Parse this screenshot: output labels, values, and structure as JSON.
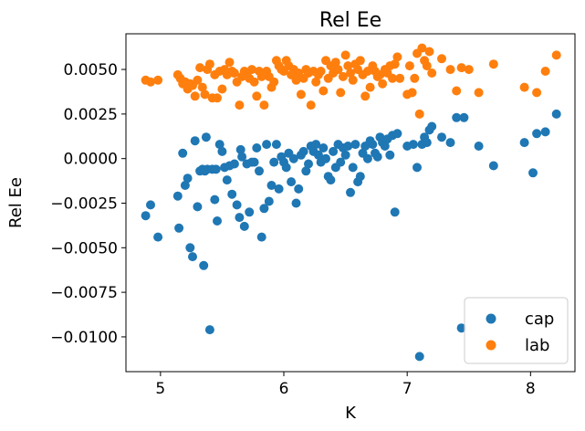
{
  "chart_data": {
    "type": "scatter",
    "title": "Rel Ee",
    "xlabel": "K",
    "ylabel": "Rel Ee",
    "xlim": [
      4.72,
      8.36
    ],
    "ylim": [
      -0.01195,
      0.007
    ],
    "xticks": [
      5,
      6,
      7,
      8
    ],
    "xtick_labels": [
      "5",
      "6",
      "7",
      "8"
    ],
    "yticks": [
      -0.01,
      -0.0075,
      -0.005,
      -0.0025,
      0.0,
      0.0025,
      0.005
    ],
    "ytick_labels": [
      "−0.0100",
      "−0.0075",
      "−0.0050",
      "−0.0025",
      "0.0000",
      "0.0025",
      "0.0050"
    ],
    "grid": false,
    "legend_position": "lower-right",
    "series": [
      {
        "name": "cap",
        "color": "#1f77b4",
        "points": [
          [
            4.88,
            -0.0032
          ],
          [
            4.92,
            -0.0026
          ],
          [
            4.98,
            -0.0044
          ],
          [
            5.14,
            -0.0021
          ],
          [
            5.15,
            -0.0039
          ],
          [
            5.18,
            0.0003
          ],
          [
            5.2,
            -0.0015
          ],
          [
            5.22,
            -0.0011
          ],
          [
            5.24,
            -0.005
          ],
          [
            5.26,
            -0.0055
          ],
          [
            5.28,
            0.001
          ],
          [
            5.3,
            -0.0027
          ],
          [
            5.32,
            -0.0007
          ],
          [
            5.34,
            -0.0006
          ],
          [
            5.35,
            -0.006
          ],
          [
            5.36,
            -0.0007
          ],
          [
            5.37,
            0.0012
          ],
          [
            5.38,
            -0.0006
          ],
          [
            5.4,
            -0.0096
          ],
          [
            5.42,
            -0.0006
          ],
          [
            5.44,
            -0.0023
          ],
          [
            5.45,
            -0.0006
          ],
          [
            5.46,
            -0.0035
          ],
          [
            5.48,
            0.0008
          ],
          [
            5.5,
            0.0004
          ],
          [
            5.52,
            -0.0005
          ],
          [
            5.54,
            -0.0012
          ],
          [
            5.56,
            -0.0004
          ],
          [
            5.58,
            -0.002
          ],
          [
            5.6,
            -0.0003
          ],
          [
            5.62,
            -0.0026
          ],
          [
            5.64,
            -0.0033
          ],
          [
            5.65,
            0.0005
          ],
          [
            5.66,
            0.0001
          ],
          [
            5.68,
            -0.0038
          ],
          [
            5.7,
            -0.0003
          ],
          [
            5.72,
            -0.003
          ],
          [
            5.74,
            -0.0002
          ],
          [
            5.76,
            -0.0002
          ],
          [
            5.78,
            0.0006
          ],
          [
            5.8,
            -0.0007
          ],
          [
            5.82,
            -0.0044
          ],
          [
            5.84,
            -0.0028
          ],
          [
            5.86,
            0.0008
          ],
          [
            5.88,
            -0.0024
          ],
          [
            5.9,
            -0.0015
          ],
          [
            5.92,
            -0.0002
          ],
          [
            5.94,
            0.0008
          ],
          [
            5.96,
            -0.0017
          ],
          [
            5.98,
            0.0001
          ],
          [
            6.0,
            -0.0002
          ],
          [
            6.02,
            -0.0005
          ],
          [
            6.04,
            0.0003
          ],
          [
            6.06,
            -0.0013
          ],
          [
            6.08,
            0.0
          ],
          [
            6.1,
            -0.0025
          ],
          [
            6.12,
            -0.0017
          ],
          [
            6.14,
            0.0002
          ],
          [
            6.16,
            0.0004
          ],
          [
            6.18,
            -0.0007
          ],
          [
            6.2,
            -0.0003
          ],
          [
            6.22,
            0.0007
          ],
          [
            6.24,
            0.0004
          ],
          [
            6.26,
            0.0008
          ],
          [
            6.28,
            0.0002
          ],
          [
            6.3,
            -0.0002
          ],
          [
            6.32,
            0.0006
          ],
          [
            6.34,
            0.0
          ],
          [
            6.36,
            -0.001
          ],
          [
            6.38,
            -0.0012
          ],
          [
            6.4,
            0.0004
          ],
          [
            6.42,
            -0.0005
          ],
          [
            6.44,
            0.0008
          ],
          [
            6.46,
            -0.0002
          ],
          [
            6.48,
            0.0006
          ],
          [
            6.5,
            0.0002
          ],
          [
            6.52,
            0.0007
          ],
          [
            6.54,
            -0.0019
          ],
          [
            6.56,
            -0.0005
          ],
          [
            6.58,
            0.0008
          ],
          [
            6.6,
            -0.0013
          ],
          [
            6.62,
            -0.001
          ],
          [
            6.64,
            0.0003
          ],
          [
            6.66,
            0.0007
          ],
          [
            6.68,
            0.0
          ],
          [
            6.7,
            0.001
          ],
          [
            6.72,
            0.0008
          ],
          [
            6.74,
            0.0003
          ],
          [
            6.76,
            0.0001
          ],
          [
            6.78,
            0.0012
          ],
          [
            6.8,
            0.0009
          ],
          [
            6.82,
            0.0007
          ],
          [
            6.84,
            0.0011
          ],
          [
            6.86,
            0.0002
          ],
          [
            6.88,
            0.0013
          ],
          [
            6.9,
            -0.003
          ],
          [
            6.92,
            0.0014
          ],
          [
            7.0,
            0.0007
          ],
          [
            7.05,
            0.0008
          ],
          [
            7.08,
            -0.0005
          ],
          [
            7.1,
            -0.0111
          ],
          [
            7.12,
            0.0008
          ],
          [
            7.14,
            0.0012
          ],
          [
            7.16,
            0.0009
          ],
          [
            7.18,
            0.0016
          ],
          [
            7.2,
            0.0018
          ],
          [
            7.28,
            0.0012
          ],
          [
            7.35,
            0.0009
          ],
          [
            7.4,
            0.0023
          ],
          [
            7.44,
            -0.0095
          ],
          [
            7.46,
            0.0023
          ],
          [
            7.58,
            0.0007
          ],
          [
            7.7,
            -0.0004
          ],
          [
            7.95,
            0.0009
          ],
          [
            8.02,
            -0.0008
          ],
          [
            8.05,
            0.0014
          ],
          [
            8.12,
            0.0015
          ],
          [
            8.21,
            0.0025
          ]
        ]
      },
      {
        "name": "lab",
        "color": "#ff7f0e",
        "points": [
          [
            4.88,
            0.0044
          ],
          [
            4.92,
            0.0043
          ],
          [
            4.98,
            0.0044
          ],
          [
            5.14,
            0.0047
          ],
          [
            5.16,
            0.0045
          ],
          [
            5.18,
            0.0042
          ],
          [
            5.2,
            0.0043
          ],
          [
            5.22,
            0.0039
          ],
          [
            5.24,
            0.0042
          ],
          [
            5.26,
            0.0041
          ],
          [
            5.28,
            0.0035
          ],
          [
            5.3,
            0.0044
          ],
          [
            5.32,
            0.0051
          ],
          [
            5.34,
            0.004
          ],
          [
            5.36,
            0.0036
          ],
          [
            5.38,
            0.005
          ],
          [
            5.4,
            0.0053
          ],
          [
            5.42,
            0.0034
          ],
          [
            5.44,
            0.0047
          ],
          [
            5.46,
            0.0034
          ],
          [
            5.48,
            0.0049
          ],
          [
            5.5,
            0.0039
          ],
          [
            5.52,
            0.005
          ],
          [
            5.54,
            0.0047
          ],
          [
            5.56,
            0.0054
          ],
          [
            5.58,
            0.0049
          ],
          [
            5.6,
            0.0048
          ],
          [
            5.62,
            0.0043
          ],
          [
            5.64,
            0.003
          ],
          [
            5.66,
            0.0046
          ],
          [
            5.68,
            0.0049
          ],
          [
            5.7,
            0.0048
          ],
          [
            5.72,
            0.0045
          ],
          [
            5.74,
            0.005
          ],
          [
            5.76,
            0.0043
          ],
          [
            5.78,
            0.0035
          ],
          [
            5.8,
            0.0049
          ],
          [
            5.82,
            0.0046
          ],
          [
            5.84,
            0.003
          ],
          [
            5.86,
            0.0049
          ],
          [
            5.88,
            0.0046
          ],
          [
            5.9,
            0.004
          ],
          [
            5.92,
            0.0043
          ],
          [
            5.94,
            0.0055
          ],
          [
            5.96,
            0.0052
          ],
          [
            5.98,
            0.005
          ],
          [
            6.0,
            0.0049
          ],
          [
            6.02,
            0.0055
          ],
          [
            6.04,
            0.0052
          ],
          [
            6.06,
            0.0047
          ],
          [
            6.08,
            0.005
          ],
          [
            6.1,
            0.0044
          ],
          [
            6.12,
            0.0048
          ],
          [
            6.14,
            0.0036
          ],
          [
            6.16,
            0.0045
          ],
          [
            6.18,
            0.005
          ],
          [
            6.2,
            0.0048
          ],
          [
            6.22,
            0.003
          ],
          [
            6.24,
            0.0049
          ],
          [
            6.26,
            0.0043
          ],
          [
            6.28,
            0.0047
          ],
          [
            6.3,
            0.0049
          ],
          [
            6.32,
            0.0038
          ],
          [
            6.34,
            0.0055
          ],
          [
            6.36,
            0.0045
          ],
          [
            6.38,
            0.0052
          ],
          [
            6.4,
            0.0048
          ],
          [
            6.42,
            0.0054
          ],
          [
            6.44,
            0.005
          ],
          [
            6.46,
            0.0037
          ],
          [
            6.48,
            0.0046
          ],
          [
            6.5,
            0.0058
          ],
          [
            6.52,
            0.0052
          ],
          [
            6.54,
            0.0048
          ],
          [
            6.56,
            0.0044
          ],
          [
            6.58,
            0.0053
          ],
          [
            6.6,
            0.005
          ],
          [
            6.62,
            0.0055
          ],
          [
            6.64,
            0.0047
          ],
          [
            6.66,
            0.0035
          ],
          [
            6.68,
            0.0049
          ],
          [
            6.7,
            0.004
          ],
          [
            6.72,
            0.0052
          ],
          [
            6.74,
            0.0049
          ],
          [
            6.76,
            0.0046
          ],
          [
            6.78,
            0.0047
          ],
          [
            6.8,
            0.0042
          ],
          [
            6.82,
            0.005
          ],
          [
            6.84,
            0.0048
          ],
          [
            6.86,
            0.0052
          ],
          [
            6.88,
            0.0045
          ],
          [
            6.9,
            0.0053
          ],
          [
            6.92,
            0.0057
          ],
          [
            6.94,
            0.0045
          ],
          [
            7.0,
            0.0036
          ],
          [
            7.02,
            0.0052
          ],
          [
            7.04,
            0.0037
          ],
          [
            7.06,
            0.0045
          ],
          [
            7.08,
            0.0059
          ],
          [
            7.1,
            0.0025
          ],
          [
            7.12,
            0.0062
          ],
          [
            7.14,
            0.0055
          ],
          [
            7.16,
            0.0052
          ],
          [
            7.18,
            0.006
          ],
          [
            7.2,
            0.0048
          ],
          [
            7.28,
            0.0056
          ],
          [
            7.35,
            0.005
          ],
          [
            7.4,
            0.0038
          ],
          [
            7.44,
            0.0051
          ],
          [
            7.5,
            0.005
          ],
          [
            7.58,
            0.0037
          ],
          [
            7.7,
            0.0053
          ],
          [
            7.95,
            0.004
          ],
          [
            8.05,
            0.0037
          ],
          [
            8.12,
            0.0049
          ],
          [
            8.21,
            0.0058
          ]
        ]
      }
    ]
  }
}
